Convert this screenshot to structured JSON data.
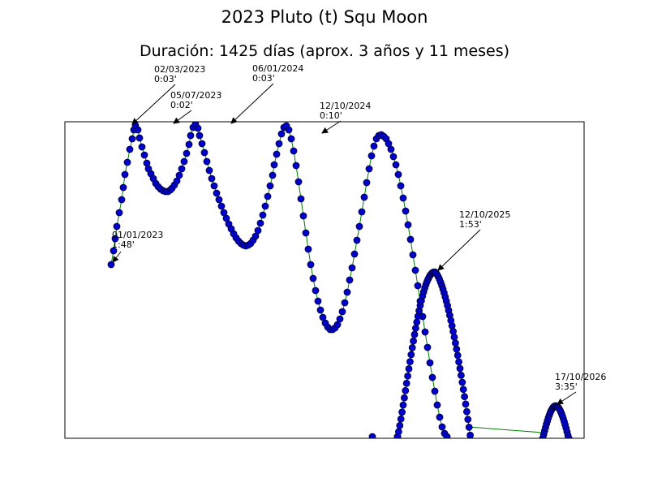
{
  "chart_data": {
    "type": "line",
    "title": "2023 Pluto (t) Squ Moon",
    "subtitle": "Duración: 1425 días (aprox. 3 años y 11 meses)",
    "xlabel": "",
    "ylabel": "",
    "grid": false,
    "line_color": "#008000",
    "marker_face_color": "#0000cc",
    "marker_edge_color": "#000033",
    "axis_frame_color": "#000000",
    "ylim": [
      10,
      0
    ],
    "xlim": [
      -14,
      1460
    ],
    "series": [
      {
        "segments": [
          {
            "knots": [
              [
                0,
                1.76
              ],
              [
                4,
                1.25
              ],
              [
                12,
                0.05
              ],
              [
                17,
                0.55
              ],
              [
                24,
                0.82
              ],
              [
                33,
                0.55
              ],
              [
                36,
                0.02
              ],
              [
                50,
                1.2
              ],
              [
                70,
                3.53
              ],
              [
                76,
                3.6
              ],
              [
                84,
                3.3
              ],
              [
                90,
                2.3
              ],
              [
                95,
                1.0
              ],
              [
                97,
                0.03
              ],
              [
                100,
                0.4
              ],
              [
                110,
                2.0
              ],
              [
                140,
                5.8
              ],
              [
                150,
                6.46
              ],
              [
                160,
                6.0
              ],
              [
                172,
                4.0
              ],
              [
                196,
                1.0
              ],
              [
                211,
                0.11
              ],
              [
                226,
                0.9
              ],
              [
                245,
                4.1
              ],
              [
                260,
                7.4
              ],
              [
                270,
                9.8
              ],
              [
                275,
                10.0
              ],
              [
                280,
                10.0
              ],
              [
                290,
                9.4
              ],
              [
                300,
                8.0
              ],
              [
                320,
                5.8
              ],
              [
                330,
                4.99
              ],
              [
                340,
                5.4
              ],
              [
                355,
                7.5
              ],
              [
                366,
                9.55
              ]
            ]
          },
          {
            "knots": [
              [
                325,
                9.55
              ],
              [
                333,
                8.1
              ],
              [
                342,
                7.0
              ],
              [
                348,
                6.9
              ],
              [
                355,
                7.3
              ],
              [
                366,
                9.55
              ]
            ]
          }
        ],
        "shift": [
          0,
          0
        ]
      }
    ],
    "annotations": [
      {
        "date": "01/01/2023",
        "time": "1:48'",
        "x": 0,
        "y": 1.76
      },
      {
        "date": "02/03/2023",
        "time": "0:03'",
        "x": 12,
        "y": 0.05
      },
      {
        "date": "05/07/2023",
        "time": "0:02'",
        "x": 36,
        "y": 0.02
      },
      {
        "date": "06/01/2024",
        "time": "0:03'",
        "x": 97,
        "y": 0.03
      },
      {
        "date": "12/10/2024",
        "time": "0:10'",
        "x": 211,
        "y": 0.11
      },
      {
        "date": "12/10/2025",
        "time": "1:53'",
        "x": 330,
        "y": 4.99
      },
      {
        "date": "17/10/2026",
        "time": "3:35'",
        "x": 422,
        "y": 9.4
      }
    ]
  }
}
